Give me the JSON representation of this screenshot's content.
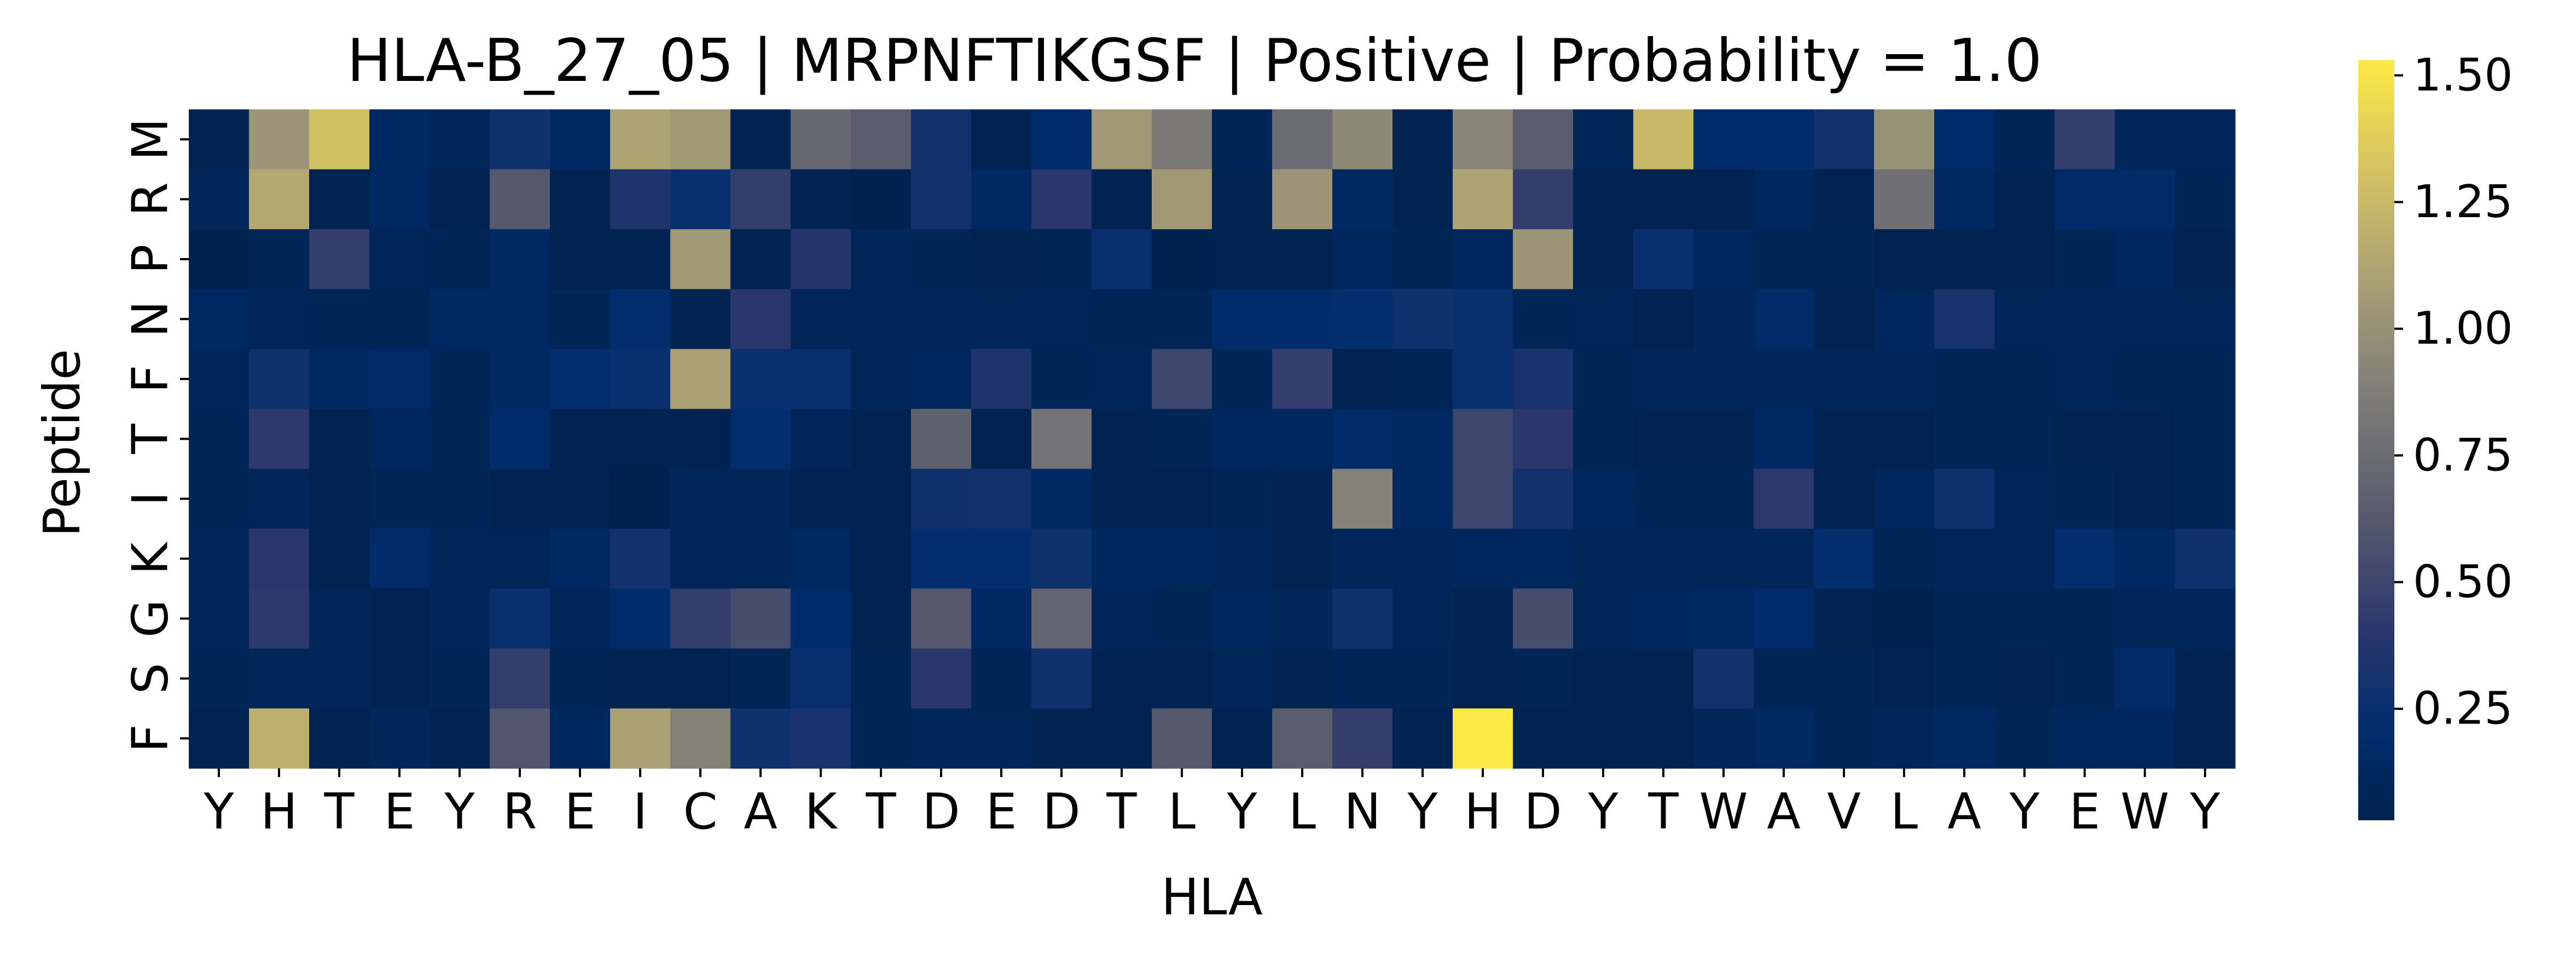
{
  "chart_data": {
    "type": "heatmap",
    "title": "HLA-B_27_05 | MRPNFTIKGSF | Positive | Probability = 1.0",
    "xlabel": "HLA",
    "ylabel": "Peptide",
    "x_ticks": [
      "Y",
      "H",
      "T",
      "E",
      "Y",
      "R",
      "E",
      "I",
      "C",
      "A",
      "K",
      "T",
      "D",
      "E",
      "D",
      "T",
      "L",
      "Y",
      "L",
      "N",
      "Y",
      "H",
      "D",
      "Y",
      "T",
      "W",
      "A",
      "V",
      "L",
      "A",
      "Y",
      "E",
      "W",
      "Y"
    ],
    "y_ticks": [
      "M",
      "R",
      "P",
      "N",
      "F",
      "T",
      "I",
      "K",
      "G",
      "S",
      "F"
    ],
    "colorbar": {
      "min": 0.03,
      "max": 1.53,
      "ticks": [
        "0.25",
        "0.50",
        "0.75",
        "1.00",
        "1.25",
        "1.50"
      ],
      "tick_values": [
        0.25,
        0.5,
        0.75,
        1.0,
        1.25,
        1.5
      ],
      "colormap": "cividis"
    },
    "values": [
      [
        0.05,
        1.02,
        1.3,
        0.15,
        0.1,
        0.28,
        0.15,
        1.12,
        1.05,
        0.05,
        0.72,
        0.65,
        0.3,
        0.05,
        0.2,
        1.05,
        0.85,
        0.08,
        0.75,
        0.95,
        0.05,
        0.92,
        0.65,
        0.1,
        1.25,
        0.2,
        0.2,
        0.3,
        1.0,
        0.2,
        0.08,
        0.45,
        0.1,
        0.1
      ],
      [
        0.1,
        1.15,
        0.05,
        0.15,
        0.05,
        0.62,
        0.05,
        0.35,
        0.25,
        0.45,
        0.05,
        0.02,
        0.3,
        0.15,
        0.4,
        0.05,
        1.05,
        0.05,
        1.02,
        0.15,
        0.05,
        1.12,
        0.45,
        0.05,
        0.05,
        0.05,
        0.12,
        0.05,
        0.78,
        0.15,
        0.05,
        0.18,
        0.18,
        0.08
      ],
      [
        0.02,
        0.08,
        0.45,
        0.1,
        0.08,
        0.15,
        0.05,
        0.05,
        1.05,
        0.05,
        0.38,
        0.1,
        0.08,
        0.05,
        0.08,
        0.25,
        0.02,
        0.05,
        0.05,
        0.12,
        0.08,
        0.12,
        1.02,
        0.05,
        0.25,
        0.12,
        0.08,
        0.08,
        0.05,
        0.05,
        0.05,
        0.08,
        0.12,
        0.05
      ],
      [
        0.15,
        0.1,
        0.08,
        0.08,
        0.15,
        0.15,
        0.08,
        0.22,
        0.05,
        0.4,
        0.1,
        0.1,
        0.1,
        0.1,
        0.1,
        0.08,
        0.08,
        0.2,
        0.2,
        0.22,
        0.28,
        0.25,
        0.08,
        0.1,
        0.05,
        0.1,
        0.18,
        0.05,
        0.12,
        0.32,
        0.1,
        0.1,
        0.1,
        0.1
      ],
      [
        0.1,
        0.28,
        0.15,
        0.18,
        0.08,
        0.15,
        0.22,
        0.25,
        1.1,
        0.25,
        0.25,
        0.1,
        0.12,
        0.35,
        0.08,
        0.1,
        0.5,
        0.08,
        0.45,
        0.05,
        0.08,
        0.25,
        0.32,
        0.08,
        0.1,
        0.1,
        0.1,
        0.1,
        0.1,
        0.08,
        0.08,
        0.1,
        0.08,
        0.08
      ],
      [
        0.08,
        0.42,
        0.05,
        0.12,
        0.08,
        0.2,
        0.05,
        0.05,
        0.05,
        0.22,
        0.1,
        0.05,
        0.68,
        0.05,
        0.8,
        0.05,
        0.08,
        0.12,
        0.12,
        0.18,
        0.15,
        0.5,
        0.4,
        0.08,
        0.05,
        0.05,
        0.15,
        0.05,
        0.05,
        0.08,
        0.08,
        0.05,
        0.05,
        0.08
      ],
      [
        0.08,
        0.1,
        0.05,
        0.08,
        0.08,
        0.05,
        0.05,
        0.03,
        0.1,
        0.1,
        0.05,
        0.05,
        0.28,
        0.3,
        0.15,
        0.05,
        0.05,
        0.08,
        0.05,
        0.9,
        0.15,
        0.5,
        0.3,
        0.12,
        0.08,
        0.08,
        0.42,
        0.05,
        0.12,
        0.28,
        0.1,
        0.08,
        0.05,
        0.08
      ],
      [
        0.1,
        0.4,
        0.05,
        0.18,
        0.1,
        0.1,
        0.15,
        0.3,
        0.1,
        0.1,
        0.15,
        0.05,
        0.22,
        0.22,
        0.28,
        0.12,
        0.12,
        0.1,
        0.05,
        0.1,
        0.1,
        0.12,
        0.12,
        0.1,
        0.1,
        0.1,
        0.1,
        0.22,
        0.08,
        0.1,
        0.1,
        0.22,
        0.15,
        0.28
      ],
      [
        0.1,
        0.42,
        0.1,
        0.05,
        0.1,
        0.25,
        0.1,
        0.2,
        0.45,
        0.55,
        0.2,
        0.05,
        0.62,
        0.15,
        0.7,
        0.1,
        0.08,
        0.12,
        0.1,
        0.28,
        0.1,
        0.05,
        0.55,
        0.1,
        0.12,
        0.15,
        0.2,
        0.05,
        0.03,
        0.08,
        0.08,
        0.08,
        0.1,
        0.1
      ],
      [
        0.08,
        0.1,
        0.1,
        0.05,
        0.08,
        0.45,
        0.08,
        0.05,
        0.05,
        0.08,
        0.25,
        0.08,
        0.4,
        0.08,
        0.28,
        0.05,
        0.05,
        0.1,
        0.05,
        0.08,
        0.08,
        0.05,
        0.08,
        0.05,
        0.05,
        0.3,
        0.08,
        0.08,
        0.05,
        0.08,
        0.05,
        0.08,
        0.18,
        0.05
      ],
      [
        0.05,
        1.2,
        0.05,
        0.1,
        0.05,
        0.6,
        0.12,
        1.1,
        0.9,
        0.28,
        0.32,
        0.08,
        0.1,
        0.1,
        0.05,
        0.05,
        0.62,
        0.05,
        0.65,
        0.45,
        0.05,
        1.53,
        0.05,
        0.05,
        0.05,
        0.1,
        0.15,
        0.08,
        0.1,
        0.15,
        0.08,
        0.12,
        0.12,
        0.05
      ]
    ]
  }
}
